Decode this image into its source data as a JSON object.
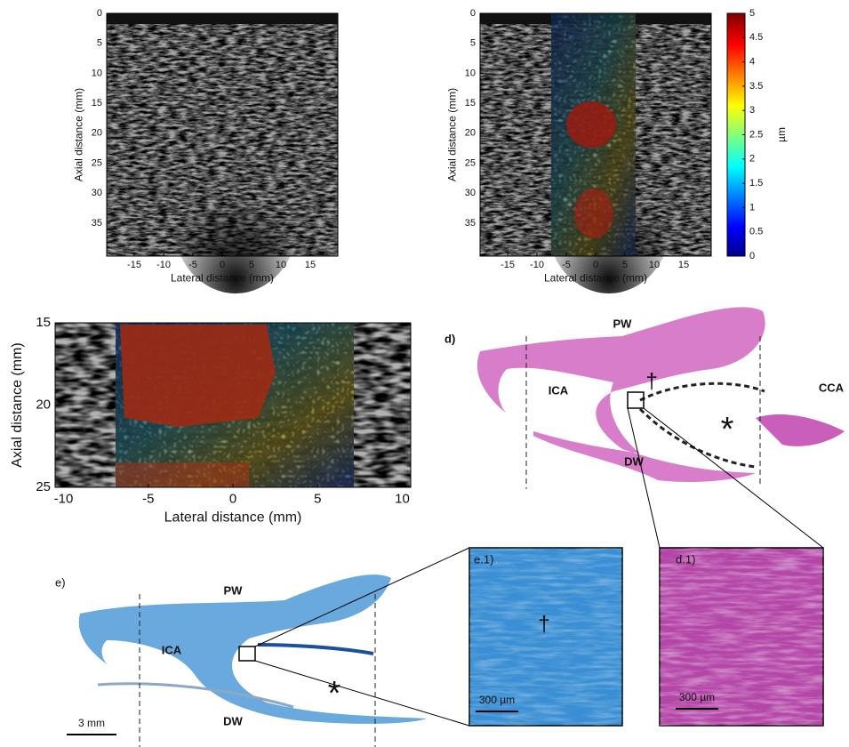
{
  "panels": [
    {
      "xlabel": "Lateral distance (mm)",
      "ylabel": "Axial distance (mm)",
      "xlim": [
        -19.7,
        19.7
      ],
      "ylim": [
        0,
        40.5
      ],
      "xticks": [
        -15,
        -10,
        -5,
        0,
        5,
        10,
        15
      ],
      "yticks": [
        0,
        5,
        10,
        15,
        20,
        25,
        30,
        35
      ]
    },
    {
      "xlabel": "Lateral distance (mm)",
      "ylabel": "Axial distance (mm)",
      "xlim": [
        -19.7,
        19.7
      ],
      "ylim": [
        0,
        40.5
      ],
      "xticks": [
        -15,
        -10,
        -5,
        0,
        5,
        10,
        15
      ],
      "yticks": [
        0,
        5,
        10,
        15,
        20,
        25,
        30,
        35
      ],
      "colorbar": {
        "label": "µm",
        "lim": [
          0,
          5
        ],
        "ticks": [
          0,
          0.5,
          1,
          1.5,
          2,
          2.5,
          3,
          3.5,
          4,
          4.5,
          5
        ]
      }
    },
    {
      "xlabel": "Lateral distance (mm)",
      "ylabel": "Axial distance (mm)",
      "xlim": [
        -10.5,
        10.5
      ],
      "ylim": [
        15,
        25
      ],
      "xticks": [
        -10,
        -5,
        0,
        5,
        10
      ],
      "yticks": [
        15,
        20,
        25
      ]
    }
  ],
  "histology_d": {
    "panel": "d)",
    "pw": "PW",
    "ica": "ICA",
    "dw": "DW",
    "cca": "CCA",
    "dagger": "†",
    "asterisk": "*"
  },
  "histology_e": {
    "panel": "e)",
    "pw": "PW",
    "ica": "ICA",
    "dw": "DW",
    "asterisk": "*",
    "scale": "3 mm"
  },
  "inset_e1": {
    "panel": "e.1)",
    "dagger": "†",
    "scale": "300 µm"
  },
  "inset_d1": {
    "panel": "d.1)",
    "scale": "300 µm"
  }
}
